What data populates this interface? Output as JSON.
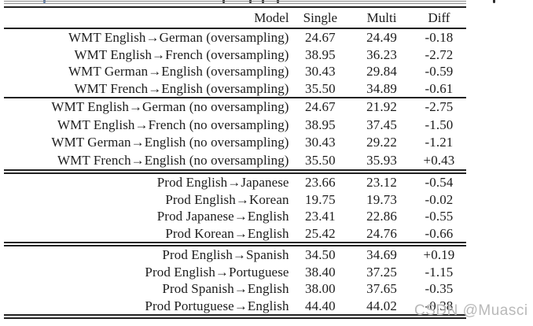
{
  "watermark": {
    "text": "CSDN @Muasci"
  },
  "table": {
    "columns": [
      "Model",
      "Single",
      "Multi",
      "Diff"
    ],
    "groups": [
      {
        "rows": [
          {
            "model": "WMT English→German (oversampling)",
            "single": "24.67",
            "multi": "24.49",
            "diff": "-0.18"
          },
          {
            "model": "WMT English→French (oversampling)",
            "single": "38.95",
            "multi": "36.23",
            "diff": "-2.72"
          },
          {
            "model": "WMT German→English (oversampling)",
            "single": "30.43",
            "multi": "29.84",
            "diff": "-0.59"
          },
          {
            "model": "WMT French→English (oversampling)",
            "single": "35.50",
            "multi": "34.89",
            "diff": "-0.61"
          }
        ]
      },
      {
        "rows": [
          {
            "model": "WMT English→German (no oversampling)",
            "single": "24.67",
            "multi": "21.92",
            "diff": "-2.75"
          },
          {
            "model": "WMT English→French (no oversampling)",
            "single": "38.95",
            "multi": "37.45",
            "diff": "-1.50"
          },
          {
            "model": "WMT German→English (no oversampling)",
            "single": "30.43",
            "multi": "29.22",
            "diff": "-1.21"
          },
          {
            "model": "WMT French→English (no oversampling)",
            "single": "35.50",
            "multi": "35.93",
            "diff": "+0.43"
          }
        ]
      },
      {
        "rows": [
          {
            "model": "Prod English→Japanese",
            "single": "23.66",
            "multi": "23.12",
            "diff": "-0.54"
          },
          {
            "model": "Prod English→Korean",
            "single": "19.75",
            "multi": "19.73",
            "diff": "-0.02"
          },
          {
            "model": "Prod Japanese→English",
            "single": "23.41",
            "multi": "22.86",
            "diff": "-0.55"
          },
          {
            "model": "Prod Korean→English",
            "single": "25.42",
            "multi": "24.76",
            "diff": "-0.66"
          }
        ]
      },
      {
        "rows": [
          {
            "model": "Prod English→Spanish",
            "single": "34.50",
            "multi": "34.69",
            "diff": "+0.19"
          },
          {
            "model": "Prod English→Portuguese",
            "single": "38.40",
            "multi": "37.25",
            "diff": "-1.15"
          },
          {
            "model": "Prod Spanish→English",
            "single": "38.00",
            "multi": "37.65",
            "diff": "-0.35"
          },
          {
            "model": "Prod Portuguese→English",
            "single": "44.40",
            "multi": "44.02",
            "diff": "-0.38"
          }
        ]
      }
    ]
  }
}
